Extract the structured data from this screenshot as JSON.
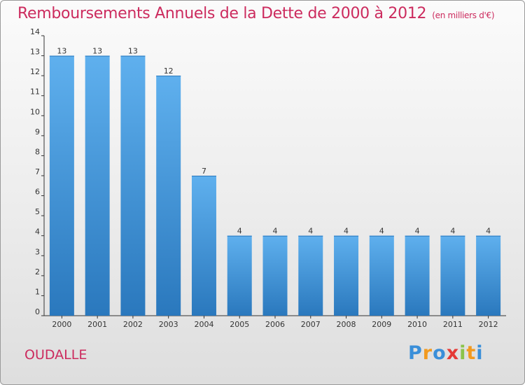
{
  "title": "Remboursements Annuels de la Dette de 2000 à 2012",
  "subtitle": "(en milliers d'€)",
  "commune": "OUDALLE",
  "logo": {
    "letters": [
      "P",
      "r",
      "o",
      "x",
      "i",
      "t",
      "i"
    ],
    "colors": [
      "#3a8fd9",
      "#f29a1f",
      "#3a8fd9",
      "#e53935",
      "#8bc34a",
      "#f29a1f",
      "#3a8fd9"
    ]
  },
  "colors": {
    "bar_light": "#5fb0ee",
    "bar_dark": "#2a78bd",
    "title": "#cc2b5e"
  },
  "chart_data": {
    "type": "bar",
    "title": "Remboursements Annuels de la Dette de 2000 à 2012",
    "subtitle": "(en milliers d'€)",
    "categories": [
      "2000",
      "2001",
      "2002",
      "2003",
      "2004",
      "2005",
      "2006",
      "2007",
      "2008",
      "2009",
      "2010",
      "2011",
      "2012"
    ],
    "values": [
      13,
      13,
      13,
      12,
      7,
      4,
      4,
      4,
      4,
      4,
      4,
      4,
      4
    ],
    "data_labels": [
      "13",
      "13",
      "13",
      "12",
      "7",
      "4",
      "4",
      "4",
      "4",
      "4",
      "4",
      "4",
      "4"
    ],
    "yticks": [
      "0",
      "1",
      "2",
      "3",
      "4",
      "5",
      "6",
      "7",
      "8",
      "9",
      "10",
      "11",
      "12",
      "13",
      "14"
    ],
    "ylim": [
      0,
      14
    ],
    "grid": false,
    "legend": "none"
  }
}
